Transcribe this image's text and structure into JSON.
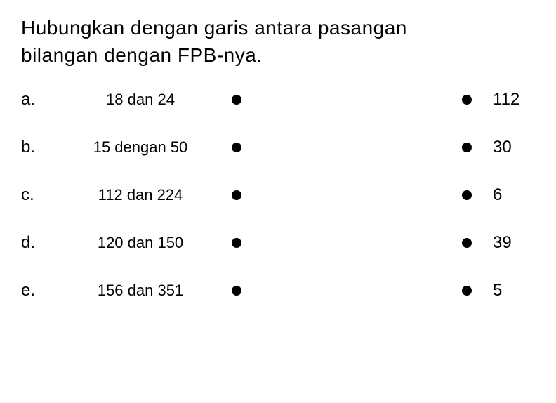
{
  "instruction": {
    "line1": "Hubungkan dengan garis antara pasangan",
    "line2": "bilangan dengan FPB-nya."
  },
  "items": [
    {
      "letter": "a.",
      "pair": "18 dan 24",
      "answer": "112"
    },
    {
      "letter": "b.",
      "pair": "15 dengan 50",
      "answer": "30"
    },
    {
      "letter": "c.",
      "pair": "112 dan 224",
      "answer": "6"
    },
    {
      "letter": "d.",
      "pair": "120 dan 150",
      "answer": "39"
    },
    {
      "letter": "e.",
      "pair": "156 dan 351",
      "answer": "5"
    }
  ],
  "styling": {
    "background_color": "#ffffff",
    "text_color": "#000000",
    "instruction_fontsize": 28,
    "row_fontsize": 24,
    "pair_fontsize": 22,
    "dot_size": 14,
    "dot_color": "#000000",
    "row_gap": 40
  }
}
